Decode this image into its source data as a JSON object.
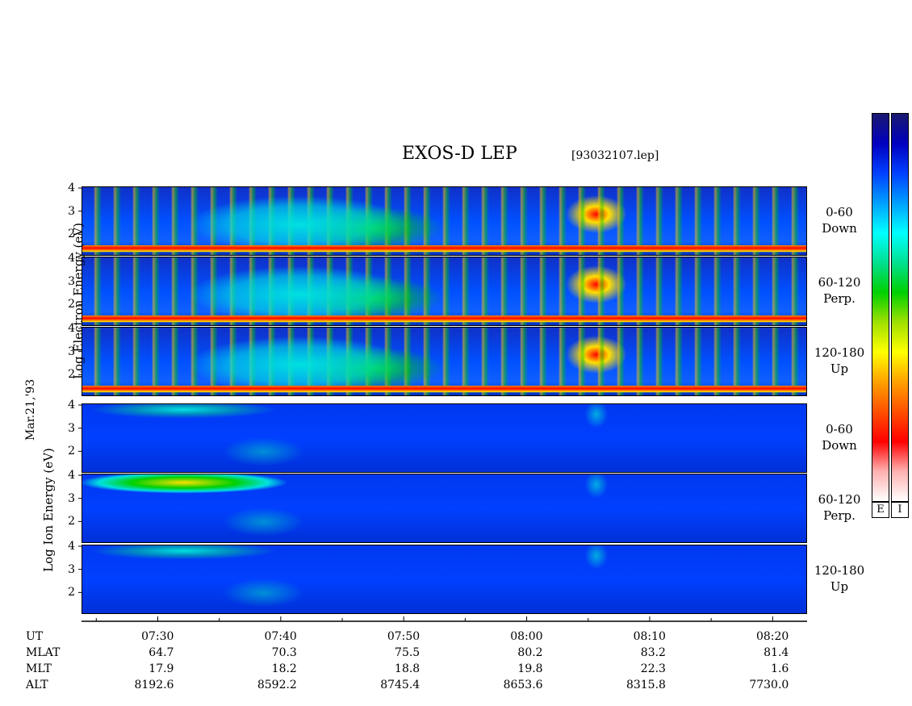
{
  "header": {
    "title": "EXOS-D LEP",
    "file": "[93032107.lep]"
  },
  "left_labels": {
    "electron": "Log Electron Energy (eV)",
    "ion": "Log Ion Energy (eV)",
    "date": "Mar.21,'93"
  },
  "colorbar": {
    "labels": [
      "E",
      "I"
    ]
  },
  "chart_data": {
    "type": "heatmap",
    "title": "EXOS-D LEP",
    "subtitle": "[93032107.lep]",
    "ylabel_electron": "Log Electron Energy (eV)",
    "ylabel_ion": "Log Ion Energy (eV)",
    "date": "Mar.21,'93",
    "ylim": [
      1,
      4
    ],
    "y_ticks": [
      "4",
      "3",
      "2"
    ],
    "x_axis": {
      "tick_labels": [
        "07:30",
        "07:40",
        "07:50",
        "08:00",
        "08:10",
        "08:20"
      ]
    },
    "panels": [
      {
        "species": "Electron",
        "pitch": "0-60",
        "dir": "Down"
      },
      {
        "species": "Electron",
        "pitch": "60-120",
        "dir": "Perp."
      },
      {
        "species": "Electron",
        "pitch": "120-180",
        "dir": "Up"
      },
      {
        "species": "Ion",
        "pitch": "0-60",
        "dir": "Down"
      },
      {
        "species": "Ion",
        "pitch": "60-120",
        "dir": "Perp."
      },
      {
        "species": "Ion",
        "pitch": "120-180",
        "dir": "Up"
      }
    ],
    "ephemeris": [
      {
        "label": "UT",
        "values": [
          "07:30",
          "07:40",
          "07:50",
          "08:00",
          "08:10",
          "08:20"
        ]
      },
      {
        "label": "MLAT",
        "values": [
          "64.7",
          "70.3",
          "75.5",
          "80.2",
          "83.2",
          "81.4"
        ]
      },
      {
        "label": "MLT",
        "values": [
          "17.9",
          "18.2",
          "18.8",
          "19.8",
          "22.3",
          "1.6"
        ]
      },
      {
        "label": "ALT",
        "values": [
          "8192.6",
          "8592.2",
          "8745.4",
          "8653.6",
          "8315.8",
          "7730.0"
        ]
      }
    ],
    "colors": {
      "low": "#0000a0",
      "mid_low": "#0050ff",
      "mid": "#00e0e0",
      "mid_high": "#00d000",
      "high": "#ffe000",
      "higher": "#ff8000",
      "max": "#ff0000"
    }
  }
}
